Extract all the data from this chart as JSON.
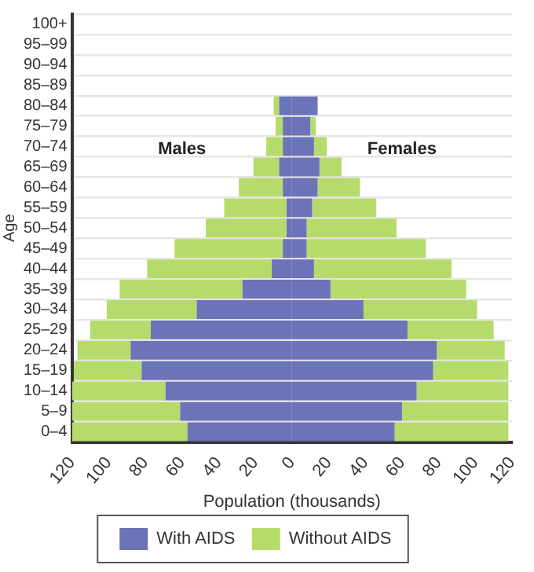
{
  "chart_data": {
    "type": "bar",
    "orientation": "horizontal",
    "stacked": true,
    "xlabel": "Population (thousands)",
    "ylabel": "Age",
    "categories": [
      "100+",
      "95–99",
      "90–94",
      "85–89",
      "80–84",
      "75–79",
      "70–74",
      "65–69",
      "60–64",
      "55–59",
      "50–54",
      "45–49",
      "40–44",
      "35–39",
      "30–34",
      "25–29",
      "20–24",
      "15–19",
      "10–14",
      "5–9",
      "0–4"
    ],
    "series": [
      {
        "name": "With AIDS",
        "color": "#6b74b8",
        "values": [
          0,
          0,
          0,
          0,
          -7,
          -5,
          -5,
          -7,
          -5,
          -3,
          -3,
          -5,
          -11,
          -27,
          -52,
          -77,
          -88,
          -82,
          -69,
          -61,
          -57
        ]
      },
      {
        "color": "#6b74b8",
        "values": [
          0,
          0,
          0,
          0,
          14,
          10,
          12,
          15,
          14,
          11,
          8,
          8,
          12,
          21,
          39,
          63,
          79,
          77,
          68,
          60,
          56
        ]
      },
      {
        "name": "Without AIDS",
        "color": "#b5dc6b",
        "values": [
          0,
          0,
          0,
          0,
          -3,
          -4,
          -9,
          -14,
          -24,
          -34,
          -44,
          -59,
          -68,
          -67,
          -49,
          -33,
          -29,
          -37,
          -51,
          -59,
          -63
        ]
      },
      {
        "color": "#b5dc6b",
        "values": [
          0,
          0,
          0,
          0,
          0,
          3,
          7,
          12,
          23,
          35,
          49,
          65,
          75,
          74,
          62,
          47,
          37,
          41,
          50,
          58,
          62
        ]
      }
    ],
    "xlim": [
      -120,
      120
    ],
    "xticks": [
      {
        "value": -120,
        "label": "120"
      },
      {
        "value": -100,
        "label": "100"
      },
      {
        "value": -80,
        "label": "80"
      },
      {
        "value": -60,
        "label": "60"
      },
      {
        "value": -40,
        "label": "40"
      },
      {
        "value": -20,
        "label": "20"
      },
      0,
      20,
      40,
      60,
      80,
      100,
      120
    ],
    "annotations": [
      "Males",
      "Females"
    ],
    "grid": "y",
    "legend": "bottom"
  }
}
